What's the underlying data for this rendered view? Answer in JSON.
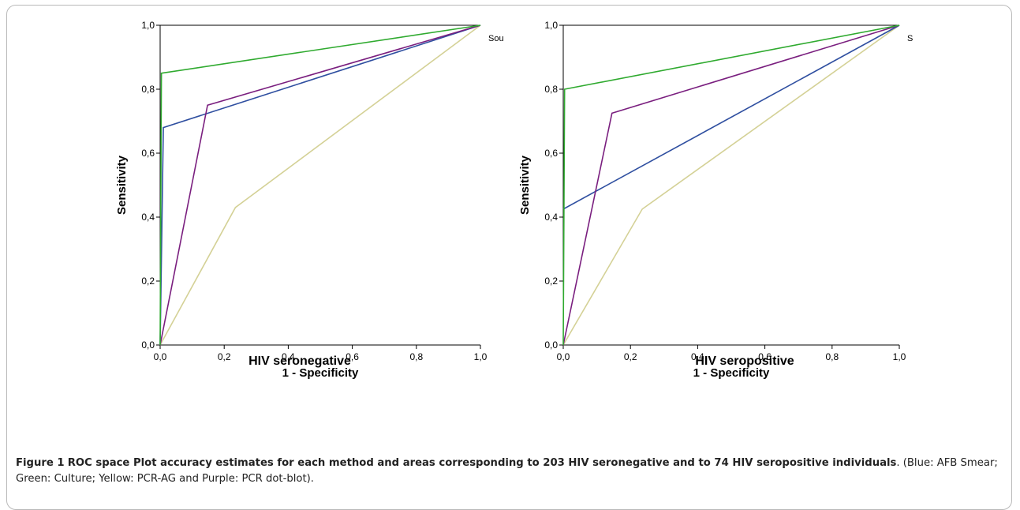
{
  "chart_data": [
    {
      "type": "line",
      "caption": "HIV seronegative",
      "xlabel": "1 - Specificity",
      "ylabel": "Sensitivity",
      "xlim": [
        0,
        1
      ],
      "ylim": [
        0,
        1
      ],
      "xticks": [
        "0,0",
        "0,2",
        "0,4",
        "0,6",
        "0,8",
        "1,0"
      ],
      "yticks": [
        "0,0",
        "0,2",
        "0,4",
        "0,6",
        "0,8",
        "1,0"
      ],
      "legend_fragment": "Sou",
      "grid": false,
      "series": [
        {
          "color": "#d4d196",
          "x": [
            0,
            0.235,
            1
          ],
          "y": [
            0,
            0.43,
            1
          ]
        },
        {
          "color": "#2f4fa0",
          "x": [
            0,
            0.01,
            1
          ],
          "y": [
            0,
            0.68,
            1
          ]
        },
        {
          "color": "#7a1f7f",
          "x": [
            0,
            0.148,
            1
          ],
          "y": [
            0,
            0.75,
            1
          ]
        },
        {
          "color": "#2faa2f",
          "x": [
            0,
            0.004,
            1
          ],
          "y": [
            0,
            0.85,
            1
          ]
        }
      ]
    },
    {
      "type": "line",
      "caption": "HIV seropositive",
      "xlabel": "1 - Specificity",
      "ylabel": "Sensitivity",
      "xlim": [
        0,
        1
      ],
      "ylim": [
        0,
        1
      ],
      "xticks": [
        "0,0",
        "0,2",
        "0,4",
        "0,6",
        "0,8",
        "1,0"
      ],
      "yticks": [
        "0,0",
        "0,2",
        "0,4",
        "0,6",
        "0,8",
        "1,0"
      ],
      "legend_fragment": "S",
      "grid": false,
      "series": [
        {
          "color": "#d4d196",
          "x": [
            0,
            0.235,
            1
          ],
          "y": [
            0,
            0.425,
            1
          ]
        },
        {
          "color": "#2f4fa0",
          "x": [
            0,
            1
          ],
          "y": [
            0.425,
            1
          ]
        },
        {
          "color": "#7a1f7f",
          "x": [
            0,
            0.145,
            1
          ],
          "y": [
            0,
            0.725,
            1
          ]
        },
        {
          "color": "#2faa2f",
          "x": [
            0,
            0.004,
            1
          ],
          "y": [
            0,
            0.8,
            1
          ]
        }
      ]
    }
  ],
  "caption": {
    "label": "Figure 1",
    "title": "ROC space Plot accuracy estimates for each method and areas corresponding to 203 HIV seronegative and to 74 HIV seropositive individuals",
    "text": ". (Blue: AFB Smear; Green: Culture; Yellow: PCR-AG and Purple: PCR dot-blot)."
  }
}
